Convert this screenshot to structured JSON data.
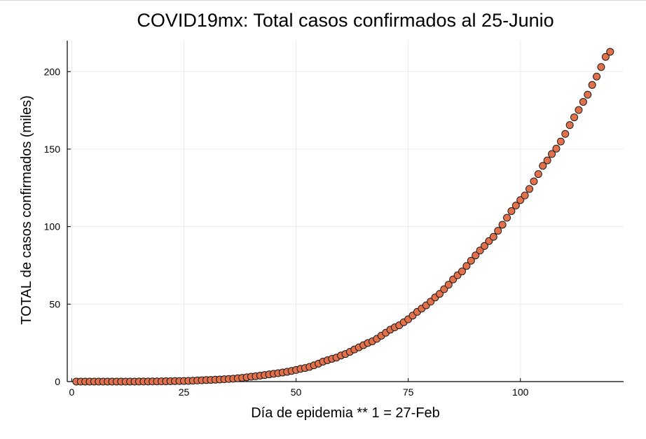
{
  "chart_data": {
    "type": "scatter",
    "title": "COVID19mx: Total casos confirmados al 25-Junio",
    "xlabel": "Día de epidemia ** 1 = 27-Feb",
    "ylabel": "TOTAL de casos confirmados (miles)",
    "xlim": [
      -1,
      123
    ],
    "ylim": [
      0,
      220
    ],
    "xticks": [
      0,
      25,
      50,
      75,
      100
    ],
    "yticks": [
      0,
      50,
      100,
      150,
      200
    ],
    "grid": true,
    "legend": "none",
    "marker_color": "#e2714b",
    "marker_edge_color": "#1a1a1a",
    "series": [
      {
        "x": [
          1,
          2,
          3,
          4,
          5,
          6,
          7,
          8,
          9,
          10,
          11,
          12,
          13,
          14,
          15,
          16,
          17,
          18,
          19,
          20,
          21,
          22,
          23,
          24,
          25,
          26,
          27,
          28,
          29,
          30,
          31,
          32,
          33,
          34,
          35,
          36,
          37,
          38,
          39,
          40,
          41,
          42,
          43,
          44,
          45,
          46,
          47,
          48,
          49,
          50,
          51,
          52,
          53,
          54,
          55,
          56,
          57,
          58,
          59,
          60,
          61,
          62,
          63,
          64,
          65,
          66,
          67,
          68,
          69,
          70,
          71,
          72,
          73,
          74,
          75,
          76,
          77,
          78,
          79,
          80,
          81,
          82,
          83,
          84,
          85,
          86,
          87,
          88,
          89,
          90,
          91,
          92,
          93,
          94,
          95,
          96,
          97,
          98,
          99,
          100,
          101,
          102,
          103,
          104,
          105,
          106,
          107,
          108,
          109,
          110,
          111,
          112,
          113,
          114,
          115,
          116,
          117,
          118,
          119,
          120
        ],
        "y": [
          0.001,
          0.002,
          0.003,
          0.004,
          0.004,
          0.005,
          0.006,
          0.007,
          0.007,
          0.008,
          0.011,
          0.012,
          0.015,
          0.026,
          0.041,
          0.053,
          0.082,
          0.093,
          0.118,
          0.164,
          0.203,
          0.251,
          0.316,
          0.367,
          0.405,
          0.475,
          0.585,
          0.717,
          0.848,
          0.993,
          1.09,
          1.22,
          1.38,
          1.51,
          1.69,
          1.89,
          2.14,
          2.44,
          2.79,
          3.18,
          3.44,
          3.84,
          4.22,
          4.66,
          5.01,
          5.4,
          5.85,
          6.3,
          6.9,
          7.5,
          8.26,
          8.77,
          9.5,
          10.5,
          11.6,
          12.9,
          13.8,
          14.7,
          15.5,
          16.8,
          17.8,
          19.2,
          20.7,
          22.1,
          23.5,
          24.9,
          26.0,
          27.6,
          29.6,
          31.5,
          33.5,
          35.0,
          36.3,
          38.3,
          40.2,
          42.6,
          45.0,
          47.1,
          49.2,
          51.6,
          54.3,
          56.6,
          59.6,
          62.5,
          65.9,
          68.6,
          71.1,
          74.6,
          78.0,
          81.4,
          84.6,
          87.5,
          90.7,
          93.4,
          97.3,
          101.2,
          105.7,
          110.0,
          113.6,
          117.1,
          120.1,
          124.3,
          129.2,
          133.9,
          139.2,
          142.7,
          146.8,
          150.3,
          154.9,
          159.8,
          165.5,
          170.5,
          175.2,
          180.5,
          185.1,
          191.4,
          196.8,
          202.95,
          209.5,
          212.8
        ]
      }
    ]
  }
}
